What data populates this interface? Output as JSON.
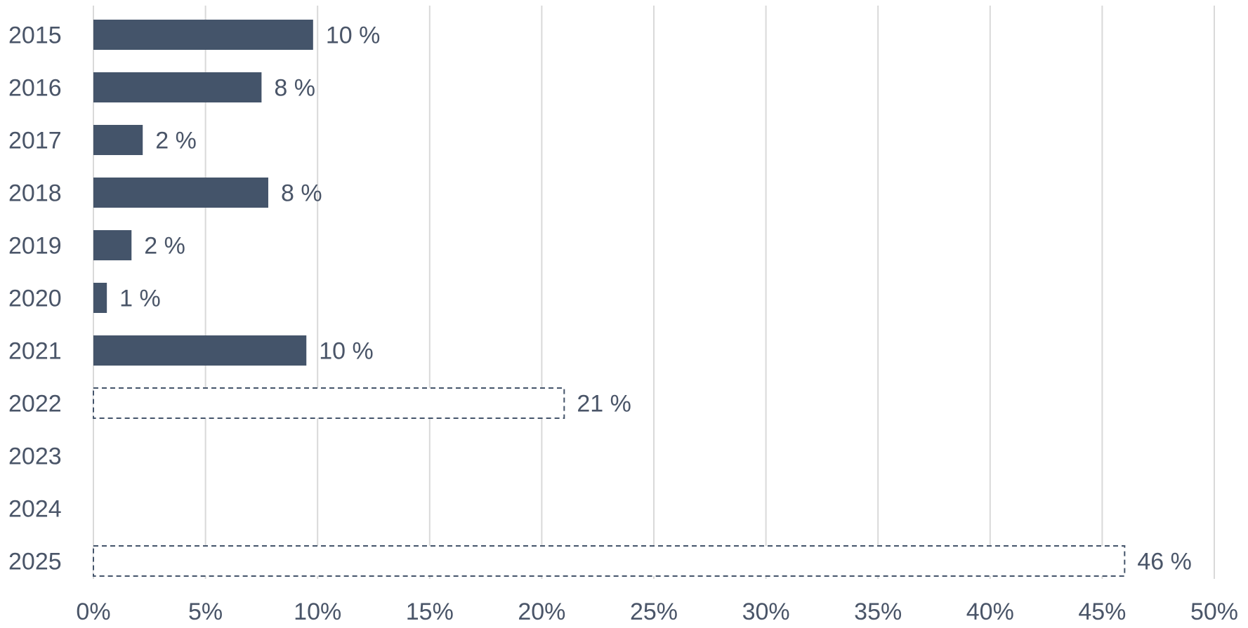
{
  "chart_data": {
    "type": "bar",
    "orientation": "horizontal",
    "categories": [
      "2015",
      "2016",
      "2017",
      "2018",
      "2019",
      "2020",
      "2021",
      "2022",
      "2023",
      "2024",
      "2025"
    ],
    "series": [
      {
        "values": [
          9.8,
          7.5,
          2.2,
          7.8,
          1.7,
          0.6,
          9.5,
          null,
          null,
          null,
          null
        ],
        "style": "solid",
        "color": "#44546a",
        "data_labels": [
          "10 %",
          "8 %",
          "2 %",
          "8 %",
          "2 %",
          "1 %",
          "10 %",
          "",
          "",
          "",
          ""
        ]
      },
      {
        "values": [
          null,
          null,
          null,
          null,
          null,
          null,
          null,
          21,
          null,
          null,
          46
        ],
        "style": "dashed-outline",
        "color": "#44546a",
        "data_labels": [
          "",
          "",
          "",
          "",
          "",
          "",
          "",
          "21 %",
          "",
          "",
          "46 %"
        ]
      }
    ],
    "xaxis": {
      "min": 0,
      "max": 50,
      "step": 5,
      "tick_labels": [
        "0%",
        "5%",
        "10%",
        "15%",
        "20%",
        "25%",
        "30%",
        "35%",
        "40%",
        "45%",
        "50%"
      ]
    },
    "grid": true,
    "legend": "none",
    "title": "",
    "xlabel": "",
    "ylabel": "",
    "colors": {
      "bar": "#44546a",
      "grid": "#d9d9d9",
      "text": "#4a5568"
    }
  }
}
